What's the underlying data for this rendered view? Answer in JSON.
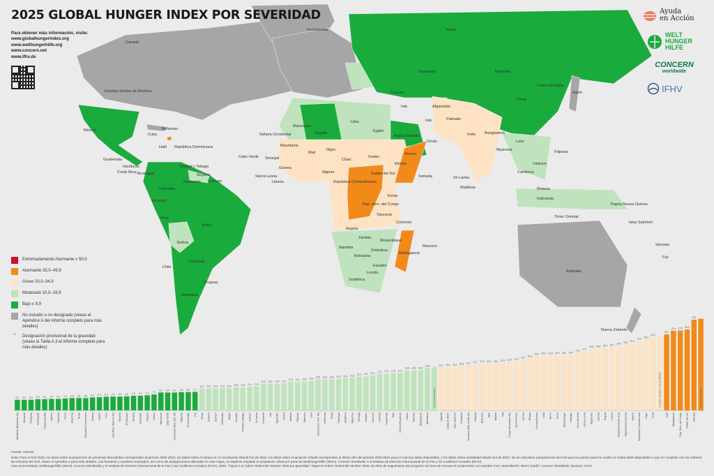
{
  "title": "2025 GLOBAL HUNGER INDEX POR SEVERIDAD",
  "info": {
    "heading": "Para obtener más información, visite:",
    "links": [
      "www.globalhungerindex.org",
      "www.welthungerhilfe.org",
      "www.concern.net",
      "www.ifhv.de"
    ]
  },
  "colors": {
    "extremely_alarming": "#c8102e",
    "alarming": "#f28a1a",
    "serious": "#fde3c3",
    "moderate": "#bfe3bc",
    "low": "#1aab3d",
    "not_included": "#a6a6a6",
    "background": "#ebebeb"
  },
  "legend": [
    {
      "label": "Extremadamente Alarmante ≥ 50,0",
      "color": "#c8102e"
    },
    {
      "label": "Alarmante 35,0–49,9",
      "color": "#f28a1a"
    },
    {
      "label": "Grave 20,0–34,9",
      "color": "#fde3c3"
    },
    {
      "label": "Moderado 10,0–19,9",
      "color": "#bfe3bc"
    },
    {
      "label": "Bajo ≤ 9,9",
      "color": "#1aab3d"
    },
    {
      "label": "No incluido o no designado (véase el Apéndice A del informe completo para más detalles)",
      "color": "#a6a6a6"
    },
    {
      "label": "Designación provisional de la gravedad (véase la Tabla A.3 el informe completo para más detalles)",
      "symbol": "*"
    }
  ],
  "logos": {
    "ayuda": [
      "Ayuda",
      "en Acción"
    ],
    "whh": [
      "WELT",
      "HUNGER",
      "HILFE",
      "WHH"
    ],
    "concern": [
      "CONCERN",
      "worldwide"
    ],
    "ifhv": "IFHV"
  },
  "map_labels": [
    "Groenlandia",
    "Canadá",
    "Estados Unidos de América",
    "México",
    "Cuba",
    "Bahamas",
    "Haití",
    "República Dominicana",
    "Guatemala",
    "Honduras",
    "Nicaragua",
    "Costa Rica",
    "Venezuela",
    "Colombia",
    "Ecuador",
    "Perú",
    "Brasil",
    "Bolivia",
    "Paraguay",
    "Chile",
    "Argentina",
    "Uruguay",
    "Guyana",
    "Surinam",
    "Trinidad y Tobago",
    "Rusia",
    "Mongolia",
    "China",
    "Kazajistán",
    "India",
    "Pakistán",
    "Afganistán",
    "Irán",
    "Irak",
    "Arabia Saudita",
    "Yemen",
    "Omán",
    "Turquía",
    "Bangladesh",
    "Myanmar",
    "Laos",
    "Vietnam",
    "Camboya",
    "Filipinas",
    "Malasia",
    "Indonesia",
    "Papúa Nueva Guinea",
    "Timor Oriental",
    "Australia",
    "Nueva Zelanda",
    "Japón",
    "Cores del Norte",
    "Sáhara Occidental",
    "Marruecos",
    "Argelia",
    "Libia",
    "Egipto",
    "Mauritania",
    "Mali",
    "Níger",
    "Chad",
    "Sudán",
    "Etiopía",
    "Somalia",
    "Kenia",
    "Nigeria",
    "República Centroafricana",
    "Sudán del Sur",
    "Rep. dem. del Congo",
    "Tanzania",
    "Angola",
    "Zambia",
    "Mozambique",
    "Madagascar",
    "Namibia",
    "Botsuana",
    "Zimbabue",
    "Sudáfrica",
    "Lesoto",
    "Esuatini",
    "Cabo Verde",
    "Senegal",
    "Guinea",
    "Sierra Leona",
    "Liberia",
    "Sri Lanka",
    "Maldivas",
    "Islas Salomón",
    "Vanuatu",
    "Fiyi",
    "Mauricio",
    "Comores"
  ],
  "chart_data": {
    "type": "bar",
    "title": "",
    "ylim": [
      0,
      45
    ],
    "groups": [
      {
        "severity": "low",
        "color": "#1aab3d",
        "categories": [
          "Moldavia (República de)",
          "Mongolia",
          "Paraguay",
          "Azerbaiyán",
          "Arabia Saudita",
          "México",
          "Colombia",
          "Túnez",
          "Argentina",
          "Brasil",
          "República Dominicana",
          "Albania",
          "Argelia",
          "Perú",
          "Irán (Rep. Islámica de)",
          "Panamá",
          "El Salvador",
          "Jamaica",
          "Kirguistán",
          "Guyana",
          "Líbano",
          "Marruecos",
          "Cabo Verde",
          "Venezuela (Rep. Bol. de)",
          "Tailandia",
          "Turkmenistán",
          "Fiyi"
        ],
        "values": [
          5.0,
          5.0,
          5.0,
          5.3,
          5.3,
          5.4,
          5.4,
          5.6,
          5.8,
          5.8,
          5.8,
          6.1,
          6.2,
          6.4,
          6.5,
          6.5,
          6.6,
          6.9,
          6.9,
          7.1,
          7.5,
          8.4,
          8.4,
          8.4,
          8.6,
          8.6,
          8.7
        ]
      },
      {
        "severity": "moderate",
        "color": "#bfe3bc",
        "categories": [
          "Omán",
          "Jordania",
          "Surinam",
          "Uzbekistán",
          "Egipto",
          "Ecuador",
          "Trinidad y Tobago",
          "Vietnam",
          "Sri Lanka",
          "Honduras",
          "Irak",
          "Tayikistán",
          "Ghana",
          "Malasia",
          "Filipinas",
          "Mauricio",
          "Libia",
          "Bolivia (Est. Plur. de)",
          "Indonesia",
          "Nepal",
          "Camboya",
          "Sudáfrica",
          "Myanmar",
          "Senegal",
          "Esuatini",
          "Camerún",
          "Gambia",
          "Guatemala",
          "Togo",
          "Guinea Ecuatorial",
          "Gabón",
          "Namibia",
          "Bangladesh",
          "Mauritania",
          "Laos y Nicaragua*"
        ],
        "values": [
          10.2,
          10.3,
          10.3,
          10.4,
          10.4,
          10.8,
          10.8,
          11.1,
          11.3,
          12.5,
          12.6,
          12.6,
          12.7,
          13.4,
          13.4,
          13.6,
          13.9,
          14.6,
          14.6,
          14.6,
          14.9,
          15.0,
          15.3,
          15.9,
          16.0,
          16.4,
          17.1,
          17.3,
          17.5,
          17.6,
          18.8,
          18.8,
          18.9,
          19.8,
          null
        ]
      },
      {
        "severity": "serious",
        "color": "#fde3c3",
        "categories": [
          "Uganda",
          "Costa de Marfil",
          "Islas Salomón",
          "Zimbabue",
          "Tanzania (Rep. Unida de)",
          "Ruanda",
          "Botsuana",
          "Malí",
          "Malawi",
          "Iraq",
          "Congo (República del)",
          "Burkina Faso",
          "Guinea",
          "Etiopía",
          "Guinea-Bissau",
          "India",
          "Benín",
          "Kenia",
          "Mozambique",
          "Pakistán",
          "Timor Oriental",
          "Sierra Leona",
          "Afganistán",
          "Zambia",
          "Angola",
          "Liberia",
          "República Árabe Siria",
          "Papúa Nueva Guinea",
          "Nigeria",
          "República Centroafricana",
          "Níger",
          "Chad",
          "Lesotho, Sudán y Corea (RPD)*"
        ],
        "values": [
          20.2,
          20.4,
          20.4,
          20.8,
          21.1,
          21.7,
          21.9,
          21.9,
          22.0,
          22.3,
          22.8,
          22.9,
          23.7,
          24.4,
          25.4,
          25.8,
          25.8,
          25.9,
          25.9,
          26.0,
          27.0,
          27.7,
          28.8,
          29.0,
          29.4,
          29.7,
          30.4,
          30.9,
          31.4,
          32.6,
          33.3,
          34.4,
          null
        ]
      },
      {
        "severity": "alarming",
        "color": "#f28a1a",
        "categories": [
          "Haití",
          "Madagascar",
          "Rep. Dem. del Congo",
          "Sudán del Sur",
          "Somalia",
          "Burundi y Yemen*"
        ],
        "values": [
          35.7,
          37.4,
          37.5,
          38.0,
          42.6,
          null
        ]
      }
    ]
  },
  "footer": {
    "source": "Fuente: Autores.",
    "note": "Nota: Para el GHI 2025, los datos sobre la proporción de personas desnutridas corresponden al período 2022-2024; los datos sobre el retraso en el crecimiento infantil son de 2024; los datos sobre emaciación infantil corresponden al último año del período 2020-2024 para el cual hay datos disponibles, y los datos sobre mortalidad infantil son de 2023. No se calcularon puntuaciones del GHI para los países para los cuales no había datos disponibles o que no cumplían con los criterios de inclusión del GHI; véase el Apéndice A para más detalles. Las fronteras y nombres mostrados, así como las designaciones utilizadas en este mapa, no implican respaldo ni aceptación oficial por parte de Welthungerhilfe (WHH), Concern Worldwide o el Instituto de Derecho Internacional de la Paz y los Conflictos Armados (IFHV).",
    "citation": "Cita recomendada: Welthungerhilfe (WHH), Concern Worldwide y el Instituto de Derecho Internacional de la Paz y los Conflictos Armados (IFHV). 2025. “Figura 1.6: Índice Global del Hambre 2025 por gravedad.” Mapa en Índice Global del Hambre 2025: 20 años de seguimiento del progreso: Es hora de renovar el compromiso con Hambre Cero. Bonn/Berlín: WHH; Dublín: Concern Worldwide; Bochum: IFHV."
  }
}
